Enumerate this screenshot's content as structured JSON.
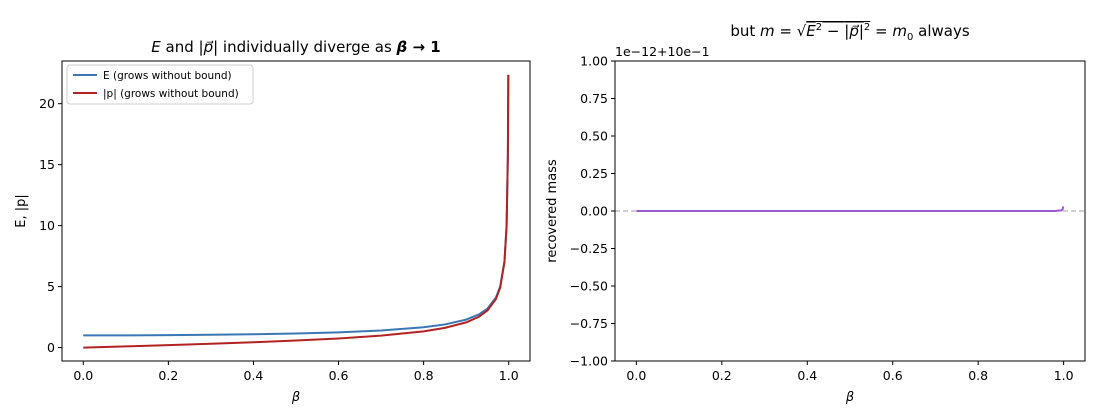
{
  "chart_data": [
    {
      "type": "line",
      "title": "E and |p⃗| individually diverge as β → 1",
      "title_parts": {
        "e": "E",
        "and": " and ",
        "p": "|p⃗|",
        "rest": " individually diverge as ",
        "beta": "β",
        "arrow": " → 1"
      },
      "xlabel": "β",
      "ylabel": "E, |p|",
      "xlim": [
        -0.05,
        1.05
      ],
      "ylim": [
        -1.1,
        23.5
      ],
      "xticks": [
        0.0,
        0.2,
        0.4,
        0.6,
        0.8,
        1.0
      ],
      "xtick_labels": [
        "0.0",
        "0.2",
        "0.4",
        "0.6",
        "0.8",
        "1.0"
      ],
      "yticks": [
        0,
        5,
        10,
        15,
        20
      ],
      "ytick_labels": [
        "0",
        "5",
        "10",
        "15",
        "20"
      ],
      "grid": false,
      "legend": "top-left",
      "series": [
        {
          "name": "E (grows without bound)",
          "color": "#3a78b5",
          "x": [
            0.0,
            0.1,
            0.2,
            0.3,
            0.4,
            0.5,
            0.6,
            0.7,
            0.8,
            0.85,
            0.9,
            0.93,
            0.95,
            0.97,
            0.98,
            0.99,
            0.995,
            0.998,
            0.999
          ],
          "values": [
            1.0,
            1.005,
            1.021,
            1.048,
            1.091,
            1.155,
            1.25,
            1.4,
            1.667,
            1.898,
            2.294,
            2.72,
            3.203,
            4.113,
            5.025,
            7.089,
            10.01,
            15.82,
            22.37
          ]
        },
        {
          "name": "|p| (grows without bound)",
          "color": "#b22222",
          "x": [
            0.0,
            0.1,
            0.2,
            0.3,
            0.4,
            0.5,
            0.6,
            0.7,
            0.8,
            0.85,
            0.9,
            0.93,
            0.95,
            0.97,
            0.98,
            0.99,
            0.995,
            0.998,
            0.999
          ],
          "values": [
            0.0,
            0.1005,
            0.2041,
            0.3145,
            0.4364,
            0.5774,
            0.75,
            0.9802,
            1.333,
            1.614,
            2.065,
            2.53,
            3.042,
            3.99,
            4.925,
            7.018,
            9.962,
            15.79,
            22.35
          ]
        }
      ]
    },
    {
      "type": "line",
      "title": "but m = √(E² − |p⃗|²) = m₀ always",
      "title_parts": {
        "but": "but ",
        "m": "m",
        "eq": " = ",
        "sqrt": "√",
        "e": "E",
        "two": "2",
        "minus": " − ",
        "p": "|p⃗|",
        "two_b": "2",
        "eq2": " = ",
        "m0": "m",
        "zero": "0",
        "always": " always"
      },
      "xlabel": "β",
      "ylabel": "recovered mass",
      "offset_text": "1e−12+10e−1",
      "xlim": [
        -0.05,
        1.05
      ],
      "ylim": [
        -1.0,
        1.0
      ],
      "xticks": [
        0.0,
        0.2,
        0.4,
        0.6,
        0.8,
        1.0
      ],
      "xtick_labels": [
        "0.0",
        "0.2",
        "0.4",
        "0.6",
        "0.8",
        "1.0"
      ],
      "yticks": [
        1.0,
        0.75,
        0.5,
        0.25,
        0.0,
        -0.25,
        -0.5,
        -0.75,
        -1.0
      ],
      "ytick_labels": [
        "1.00",
        "0.75",
        "0.50",
        "0.25",
        "0.00",
        "−0.25",
        "−0.50",
        "−0.75",
        "−1.00"
      ],
      "reference_line": {
        "y": 0.0,
        "style": "dashed",
        "color": "#a0a0a0"
      },
      "grid": false,
      "series": [
        {
          "color": "#9b59d0",
          "x": [
            0.0,
            0.2,
            0.4,
            0.6,
            0.8,
            0.9,
            0.95,
            0.98,
            0.99,
            0.995,
            0.998,
            0.999
          ],
          "values": [
            0.0,
            0.0,
            0.0,
            0.0,
            0.0,
            0.0,
            0.0,
            0.0,
            0.003,
            0.003,
            0.015,
            0.03
          ]
        }
      ]
    }
  ]
}
